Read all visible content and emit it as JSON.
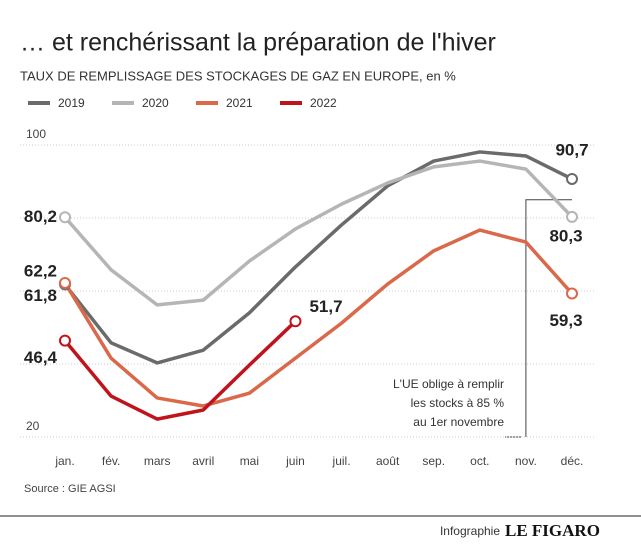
{
  "chart_data": {
    "type": "line",
    "title": "… et renchérissant la préparation de l'hiver",
    "subtitle": "TAUX DE REMPLISSAGE DES STOCKAGES DE GAZ EN EUROPE, en %",
    "source": "Source : GIE AGSI",
    "credit": "Infographie",
    "brand": "LE FIGARO",
    "annotation": [
      "L'UE oblige à remplir",
      "les stocks à 85 %",
      "au 1er novembre"
    ],
    "categories": [
      "jan.",
      "fév.",
      "mars",
      "avril",
      "mai",
      "juin",
      "juil.",
      "août",
      "sep.",
      "oct.",
      "nov.",
      "déc."
    ],
    "ylim": [
      20,
      100
    ],
    "yticks": [
      20,
      100
    ],
    "minor_yticks": [
      40,
      60,
      80
    ],
    "grid": true,
    "series": [
      {
        "name": "2019",
        "color": "#6b6b6b",
        "values": [
          61.8,
          45.8,
          40.3,
          43.8,
          54,
          66.6,
          78.1,
          88.8,
          95.6,
          98.1,
          97,
          90.7
        ],
        "value_labels": [
          "61,8",
          null,
          null,
          null,
          null,
          null,
          null,
          null,
          null,
          null,
          null,
          "90,7"
        ]
      },
      {
        "name": "2020",
        "color": "#b5b5b5",
        "values": [
          80.2,
          65.8,
          56.2,
          57.5,
          68.2,
          77,
          83.8,
          89.6,
          94,
          95.6,
          93.4,
          80.3
        ],
        "value_labels": [
          "80,2",
          null,
          null,
          null,
          null,
          null,
          null,
          null,
          null,
          null,
          null,
          "80,3"
        ]
      },
      {
        "name": "2021",
        "color": "#d9694a",
        "values": [
          62.2,
          41.6,
          30.7,
          28.5,
          32,
          41.6,
          51.2,
          61.9,
          71,
          76.7,
          73.4,
          59.3
        ],
        "value_labels": [
          "62,2",
          null,
          null,
          null,
          null,
          null,
          null,
          null,
          null,
          null,
          null,
          "59,3"
        ]
      },
      {
        "name": "2022",
        "color": "#c0141c",
        "values": [
          46.4,
          31.2,
          24.9,
          27.4,
          39.7,
          51.7,
          null,
          null,
          null,
          null,
          null,
          null
        ],
        "value_labels": [
          "46,4",
          null,
          null,
          null,
          null,
          "51,7",
          null,
          null,
          null,
          null,
          null,
          null
        ]
      }
    ]
  }
}
